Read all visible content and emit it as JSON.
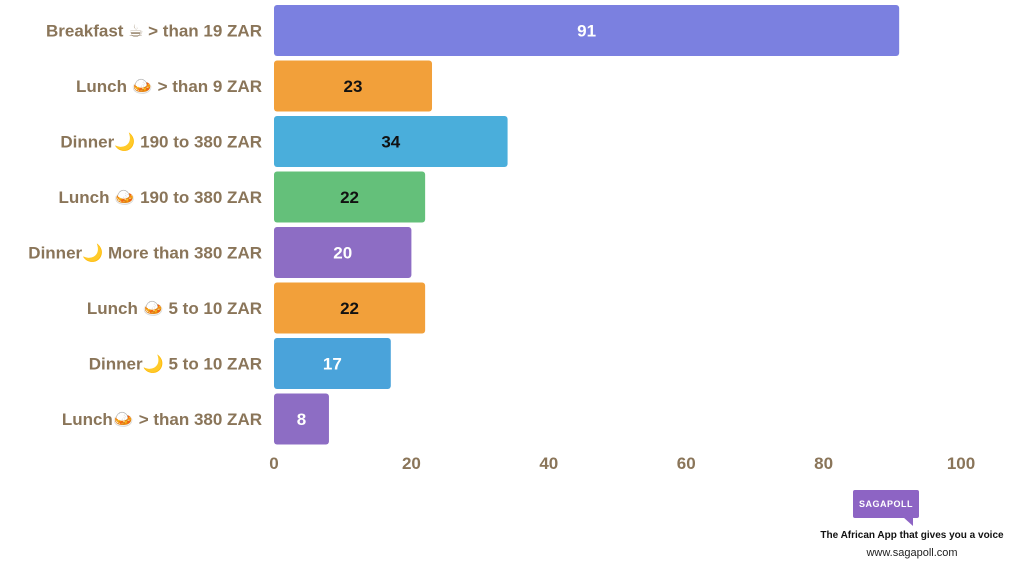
{
  "chart_data": {
    "type": "bar",
    "orientation": "horizontal",
    "categories": [
      "Breakfast ☕  > than 19 ZAR",
      "Lunch 🍛  > than 9 ZAR",
      "Dinner🌙  190 to 380 ZAR",
      "Lunch 🍛  190 to 380 ZAR",
      "Dinner🌙  More than 380 ZAR",
      "Lunch 🍛  5 to 10 ZAR",
      "Dinner🌙  5 to 10 ZAR",
      "Lunch🍛  > than 380 ZAR"
    ],
    "values": [
      91,
      23,
      34,
      22,
      20,
      22,
      17,
      8
    ],
    "colors": [
      "#7b80e0",
      "#f2a03a",
      "#4aaedb",
      "#64c07a",
      "#8d6dc4",
      "#f2a03a",
      "#4aa3da",
      "#8d6dc4"
    ],
    "label_colors": [
      "#ffffff",
      "#111111",
      "#111111",
      "#111111",
      "#ffffff",
      "#111111",
      "#ffffff",
      "#ffffff"
    ],
    "xlim": [
      0,
      100
    ],
    "xticks": [
      0,
      20,
      40,
      60,
      80,
      100
    ],
    "grid": false,
    "legend": "none"
  },
  "branding": {
    "logo_text": "SAGAPOLL",
    "tagline": "The African App that gives you a voice",
    "website": "www.sagapoll.com"
  }
}
